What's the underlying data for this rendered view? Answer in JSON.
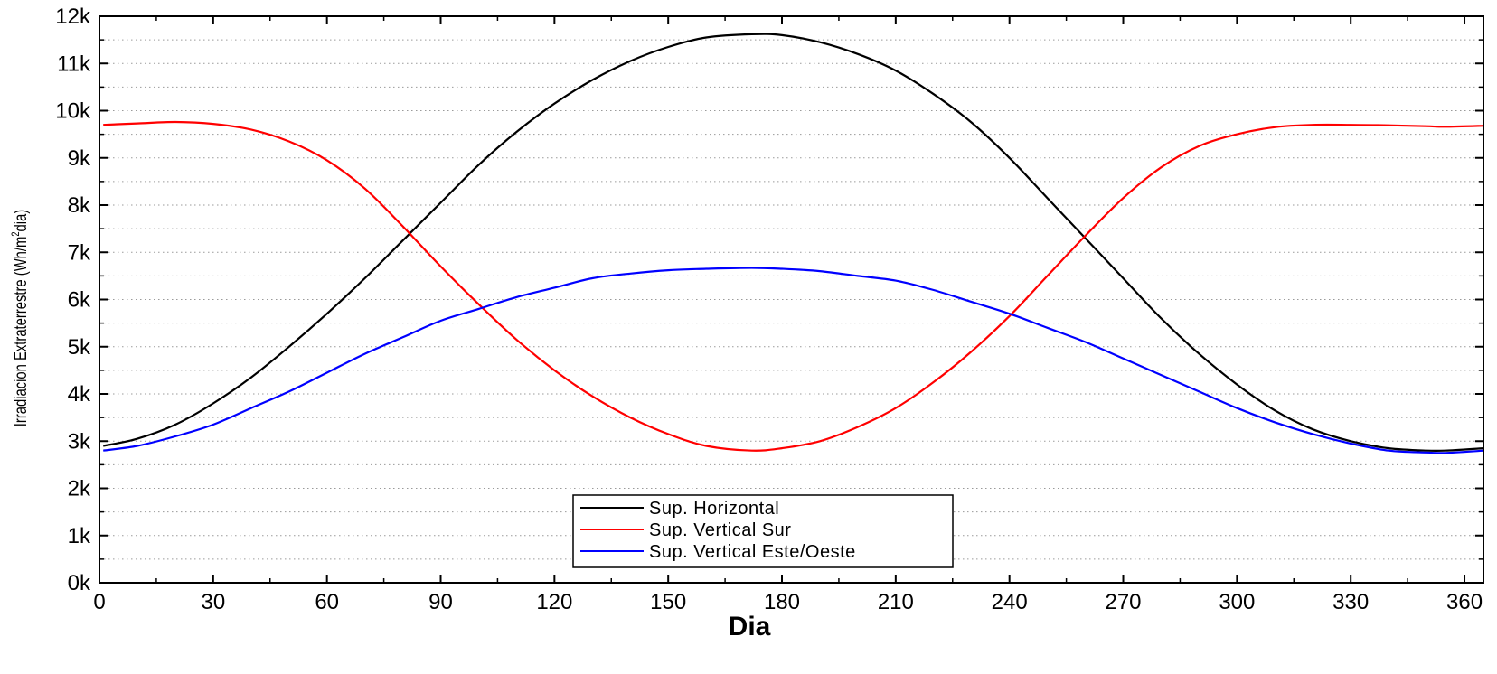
{
  "chart_data": {
    "type": "line",
    "xlabel": "Dia",
    "ylabel": "Irradiacion Extraterrestre (Wh/m",
    "ylabel_sup": "2",
    "ylabel_tail": "dia)",
    "xlim": [
      0,
      365
    ],
    "ylim": [
      0,
      12000
    ],
    "xticks": [
      0,
      30,
      60,
      90,
      120,
      150,
      180,
      210,
      240,
      270,
      300,
      330,
      360
    ],
    "yticks": [
      0,
      1000,
      2000,
      3000,
      4000,
      5000,
      6000,
      7000,
      8000,
      9000,
      10000,
      11000,
      12000
    ],
    "xtick_labels": [
      "0",
      "30",
      "60",
      "90",
      "120",
      "150",
      "180",
      "210",
      "240",
      "270",
      "300",
      "330",
      "360"
    ],
    "ytick_labels": [
      "0k",
      "1k",
      "2k",
      "3k",
      "4k",
      "5k",
      "6k",
      "7k",
      "8k",
      "9k",
      "10k",
      "11k",
      "12k"
    ],
    "grid": "dotted",
    "legend_position": "bottom-center",
    "series": [
      {
        "name": "Sup. Horizontal",
        "color": "#000000",
        "x": [
          1,
          10,
          20,
          30,
          40,
          50,
          60,
          70,
          80,
          90,
          100,
          110,
          120,
          130,
          140,
          150,
          160,
          172,
          180,
          190,
          200,
          210,
          220,
          230,
          240,
          250,
          260,
          270,
          280,
          290,
          300,
          310,
          320,
          330,
          340,
          350,
          355,
          365
        ],
        "y": [
          2900,
          3050,
          3350,
          3800,
          4350,
          5000,
          5700,
          6450,
          7250,
          8050,
          8850,
          9550,
          10150,
          10650,
          11050,
          11350,
          11550,
          11620,
          11600,
          11450,
          11200,
          10850,
          10350,
          9750,
          9000,
          8150,
          7300,
          6450,
          5600,
          4850,
          4200,
          3650,
          3250,
          3000,
          2850,
          2800,
          2800,
          2850
        ]
      },
      {
        "name": "Sup. Vertical Sur",
        "color": "#ff0000",
        "x": [
          1,
          10,
          20,
          30,
          40,
          50,
          60,
          70,
          80,
          90,
          100,
          110,
          120,
          130,
          140,
          150,
          160,
          172,
          180,
          190,
          200,
          210,
          220,
          230,
          240,
          250,
          260,
          270,
          280,
          290,
          300,
          310,
          320,
          330,
          340,
          350,
          355,
          365
        ],
        "y": [
          9700,
          9730,
          9760,
          9720,
          9600,
          9350,
          8950,
          8350,
          7550,
          6700,
          5900,
          5150,
          4500,
          3950,
          3500,
          3150,
          2900,
          2800,
          2850,
          3000,
          3300,
          3700,
          4250,
          4900,
          5650,
          6500,
          7350,
          8150,
          8800,
          9250,
          9500,
          9650,
          9700,
          9700,
          9690,
          9670,
          9660,
          9680
        ]
      },
      {
        "name": "Sup. Vertical Este/Oeste",
        "color": "#0000ff",
        "x": [
          1,
          10,
          20,
          30,
          40,
          50,
          60,
          70,
          80,
          90,
          100,
          110,
          120,
          130,
          140,
          150,
          160,
          172,
          180,
          190,
          200,
          210,
          220,
          230,
          240,
          250,
          260,
          270,
          280,
          290,
          300,
          310,
          320,
          330,
          340,
          350,
          355,
          365
        ],
        "y": [
          2800,
          2900,
          3100,
          3350,
          3700,
          4050,
          4450,
          4850,
          5200,
          5550,
          5800,
          6050,
          6250,
          6450,
          6550,
          6620,
          6650,
          6670,
          6650,
          6600,
          6500,
          6400,
          6200,
          5950,
          5700,
          5400,
          5100,
          4750,
          4400,
          4050,
          3700,
          3400,
          3150,
          2950,
          2800,
          2760,
          2750,
          2800
        ]
      }
    ]
  }
}
